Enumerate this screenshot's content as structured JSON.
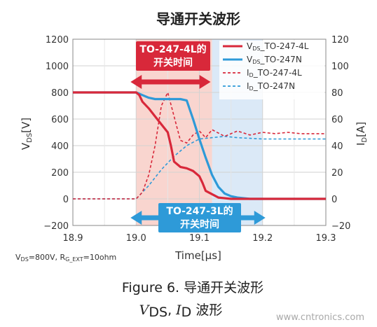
{
  "chart_data": {
    "type": "line",
    "title": "导通开关波形",
    "x": {
      "label": "Time[μs]",
      "lim": [
        18.9,
        19.3
      ],
      "ticks": [
        18.9,
        19.0,
        19.1,
        19.2,
        19.3
      ],
      "tick_labels": [
        "18.9",
        "19.0",
        "19.1",
        "19.2",
        "19.3"
      ]
    },
    "y_left": {
      "label_main": "V",
      "label_sub": "DS",
      "label_unit": "[V]",
      "lim": [
        -200,
        1200
      ],
      "ticks": [
        -200,
        0,
        200,
        400,
        600,
        800,
        1000,
        1200
      ],
      "tick_labels": [
        "−200",
        "0",
        "200",
        "400",
        "600",
        "800",
        "1000",
        "1200"
      ]
    },
    "y_right": {
      "label_main": "I",
      "label_sub": "D",
      "label_unit": "[A]",
      "lim": [
        -20,
        120
      ],
      "ticks": [
        -20,
        0,
        20,
        40,
        60,
        80,
        100,
        120
      ],
      "tick_labels": [
        "−20",
        "0",
        "20",
        "40",
        "60",
        "80",
        "100",
        "120"
      ]
    },
    "grid": true,
    "legend_position": "top-right",
    "series": [
      {
        "legend_main": "V",
        "legend_sub": "DS",
        "legend_rest": "_TO-247-4L",
        "axis": "left",
        "color": "#d8283a",
        "style": "solid",
        "x": [
          18.9,
          19.0,
          19.005,
          19.01,
          19.02,
          19.03,
          19.04,
          19.05,
          19.055,
          19.06,
          19.07,
          19.08,
          19.09,
          19.1,
          19.105,
          19.11,
          19.13,
          19.15,
          19.2,
          19.25,
          19.3
        ],
        "y": [
          800,
          800,
          780,
          730,
          680,
          620,
          560,
          500,
          400,
          280,
          240,
          230,
          210,
          170,
          120,
          60,
          10,
          0,
          0,
          0,
          0
        ]
      },
      {
        "legend_main": "V",
        "legend_sub": "DS",
        "legend_rest": "_TO-247N",
        "axis": "left",
        "color": "#2e9ad8",
        "style": "solid",
        "x": [
          18.9,
          19.0,
          19.01,
          19.02,
          19.03,
          19.05,
          19.07,
          19.08,
          19.09,
          19.1,
          19.11,
          19.12,
          19.13,
          19.14,
          19.15,
          19.16,
          19.18,
          19.2,
          19.3
        ],
        "y": [
          800,
          800,
          780,
          760,
          750,
          750,
          750,
          740,
          600,
          450,
          310,
          180,
          90,
          40,
          20,
          10,
          0,
          0,
          0
        ]
      },
      {
        "legend_main": "I",
        "legend_sub": "D",
        "legend_rest": "_TO-247-4L",
        "axis": "right",
        "color": "#d8283a",
        "style": "dashed",
        "x": [
          18.9,
          19.0,
          19.01,
          19.02,
          19.03,
          19.04,
          19.05,
          19.06,
          19.07,
          19.08,
          19.09,
          19.1,
          19.11,
          19.12,
          19.14,
          19.16,
          19.18,
          19.2,
          19.22,
          19.24,
          19.26,
          19.3
        ],
        "y": [
          0,
          0,
          5,
          18,
          40,
          70,
          80,
          62,
          44,
          42,
          48,
          51,
          46,
          52,
          47,
          51,
          48,
          50,
          49,
          50,
          49,
          49
        ]
      },
      {
        "legend_main": "I",
        "legend_sub": "D",
        "legend_rest": "_TO-247N",
        "axis": "right",
        "color": "#2e9ad8",
        "style": "dashed",
        "x": [
          18.9,
          19.0,
          19.02,
          19.04,
          19.06,
          19.08,
          19.1,
          19.12,
          19.14,
          19.16,
          19.2,
          19.25,
          19.3
        ],
        "y": [
          0,
          0,
          10,
          22,
          32,
          40,
          45,
          46,
          47,
          46,
          45,
          45,
          45
        ]
      }
    ],
    "annotations": {
      "top_line1": "TO-247-4L的",
      "top_line2": "开关时间",
      "top_span": [
        19.0,
        19.12
      ],
      "bottom_line1": "TO-247-3L的",
      "bottom_line2": "开关时间",
      "bottom_span": [
        19.0,
        19.2
      ],
      "conditions": "V_DS=800V, R_G_EXT=10ohm"
    }
  },
  "caption": {
    "line1": "Figure 6.  导通开关波形",
    "line2_v": "V",
    "line2_v_sub": "DS",
    "line2_sep": ", ",
    "line2_i": "I",
    "line2_i_sub": "D",
    "line2_rest": " 波形"
  },
  "watermark": "www.cntronics.com",
  "colors": {
    "red": "#d8283a",
    "blue": "#2e9ad8",
    "red_band": "#f9d5cf",
    "blue_band": "#dbe9f7",
    "grid": "#d2d2d2"
  }
}
